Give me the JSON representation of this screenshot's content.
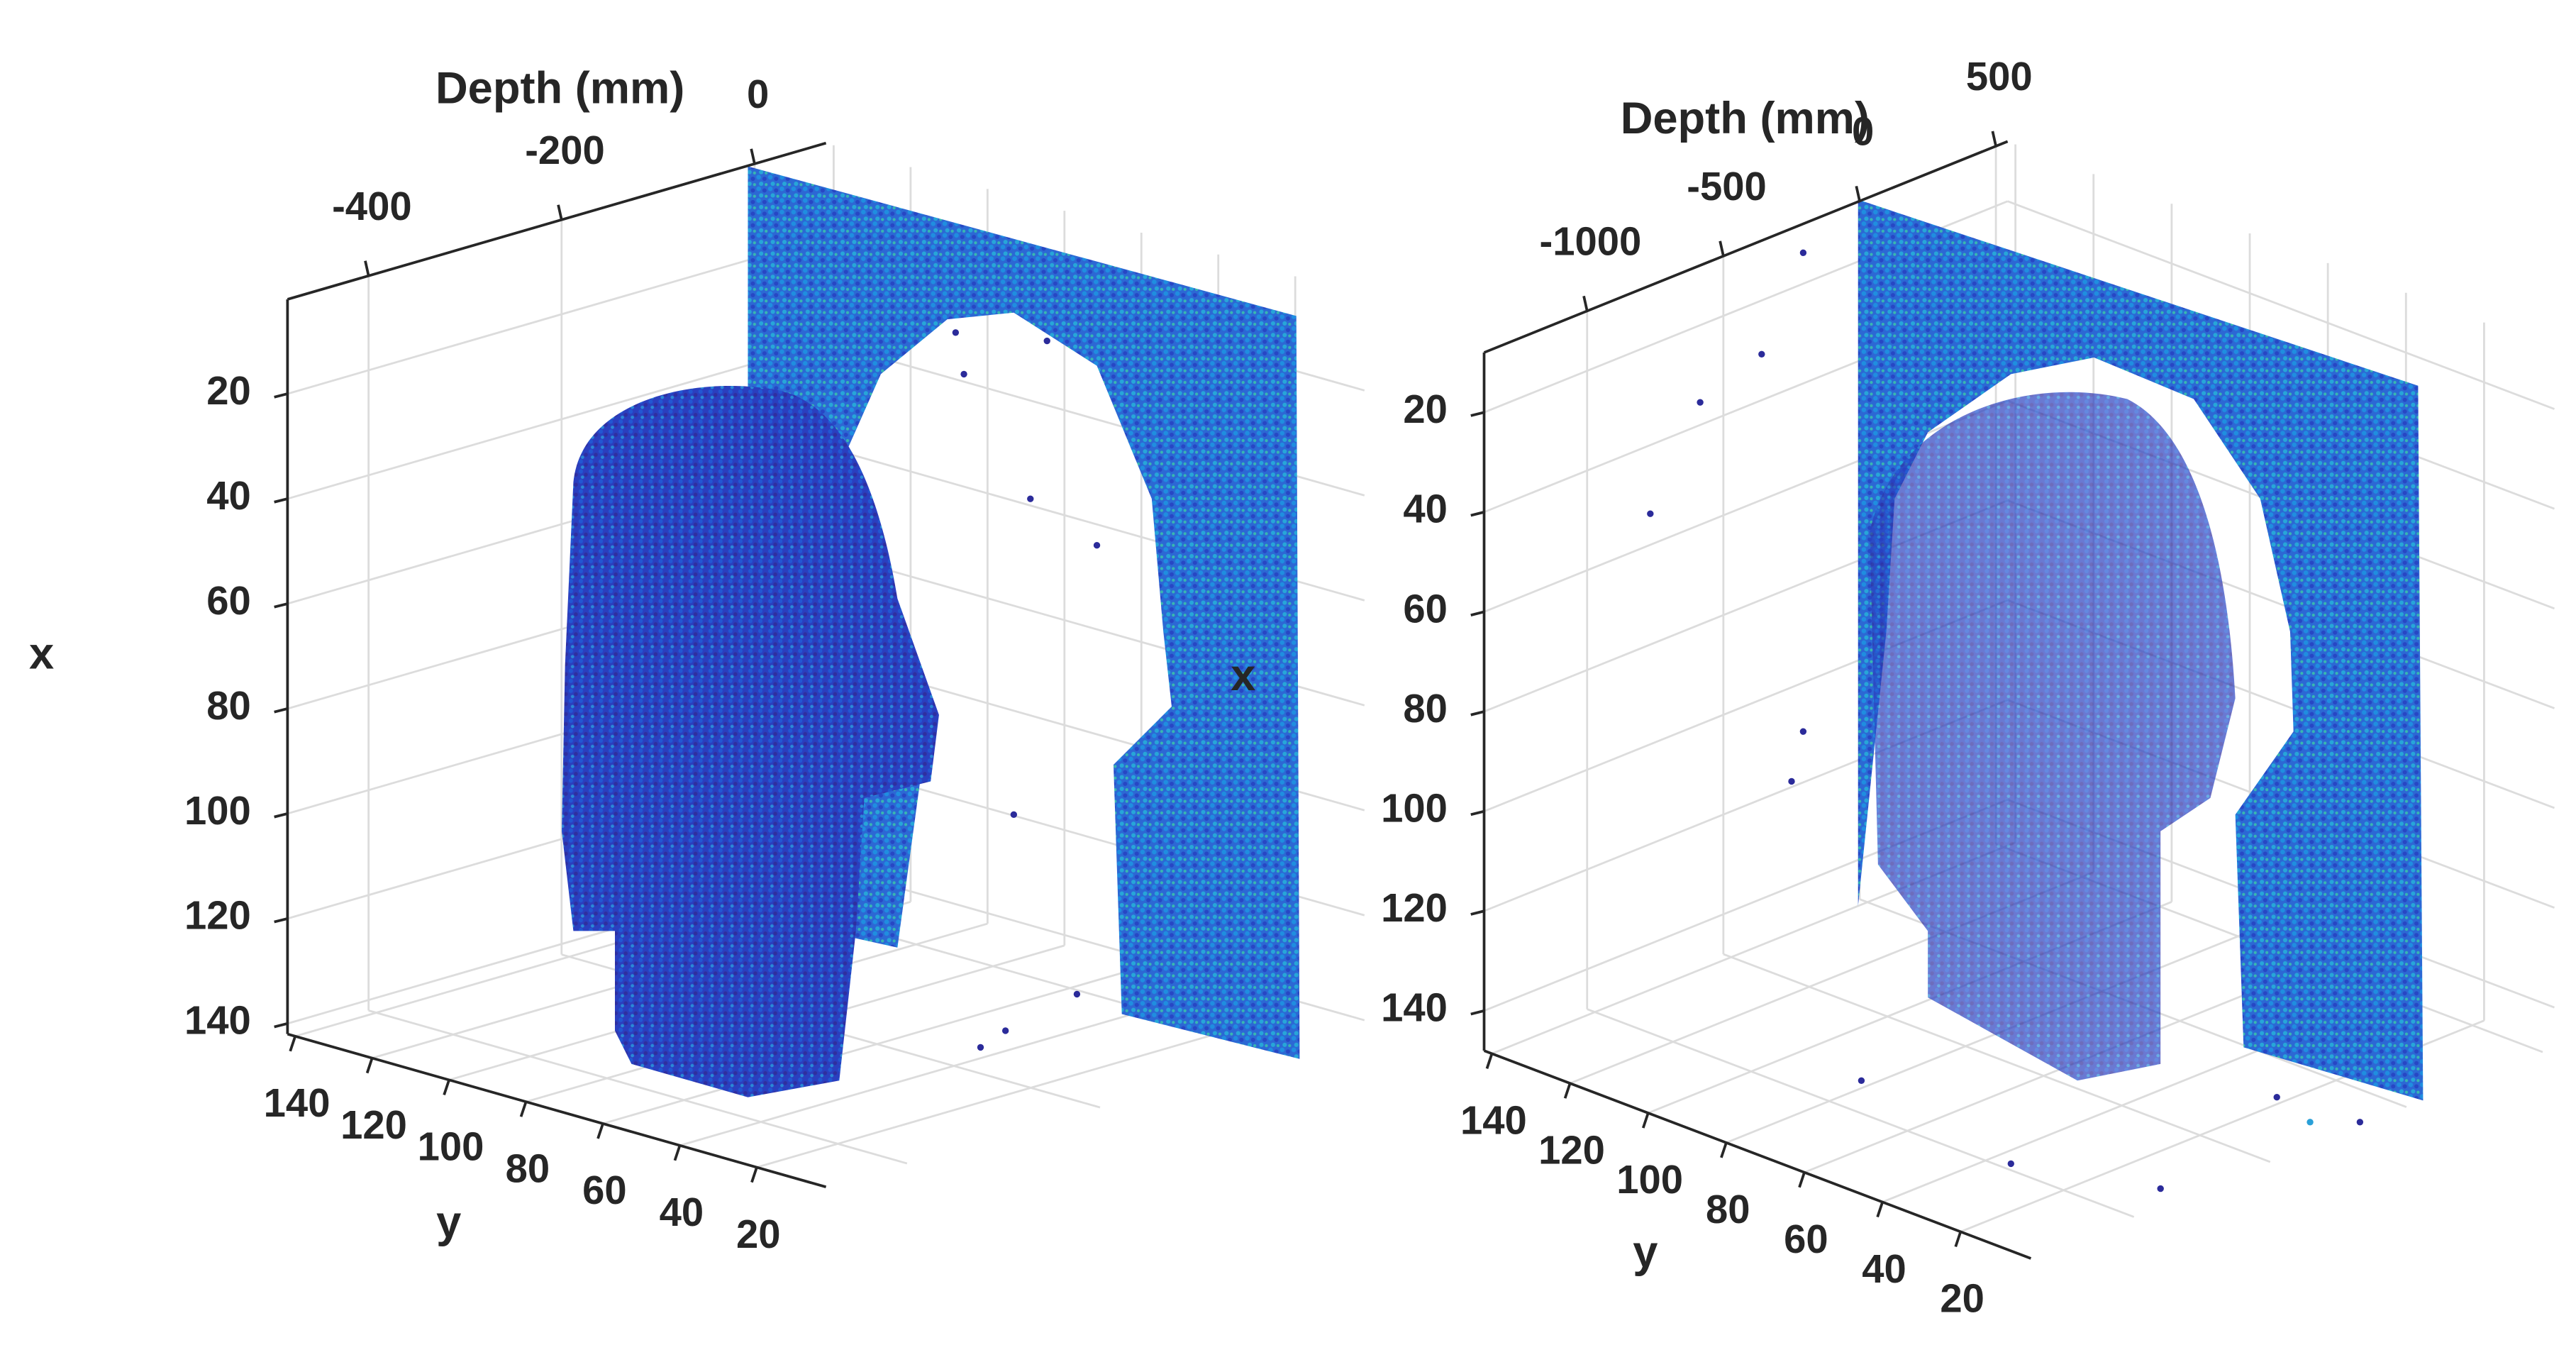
{
  "chart_data": [
    {
      "type": "scatter3d",
      "xlabel": "x",
      "ylabel": "y",
      "zlabel": "Depth (mm)",
      "xlim": [
        2,
        142
      ],
      "ylim": [
        2,
        142
      ],
      "zlim": [
        -484,
        74
      ],
      "xticks": [
        20,
        40,
        60,
        80,
        100,
        120,
        140
      ],
      "yticks": [
        20,
        40,
        60,
        80,
        100,
        120,
        140
      ],
      "zticks": [
        -400,
        -200,
        0
      ],
      "grid": true
    },
    {
      "type": "scatter3d",
      "xlabel": "x",
      "ylabel": "y",
      "zlabel": "Depth (mm)",
      "xlim": [
        8,
        148
      ],
      "ylim": [
        2,
        142
      ],
      "zlim": [
        -1378,
        543
      ],
      "xticks": [
        20,
        40,
        60,
        80,
        100,
        120,
        140
      ],
      "yticks": [
        20,
        40,
        60,
        80,
        100,
        120,
        140
      ],
      "zticks": [
        -1000,
        -500,
        0,
        500
      ],
      "grid": true
    }
  ]
}
